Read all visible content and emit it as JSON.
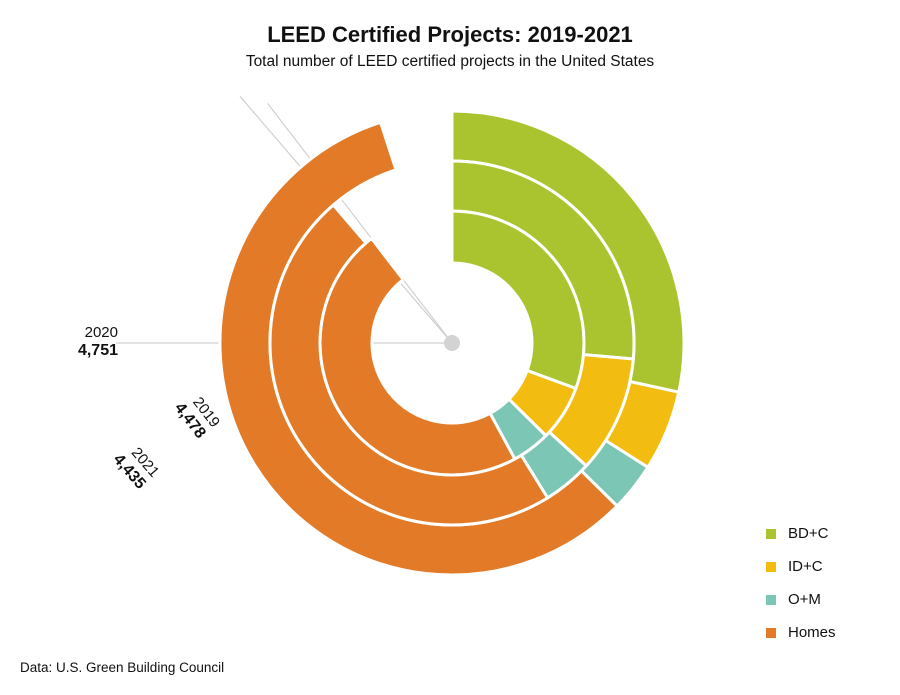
{
  "chart_data": {
    "type": "donut",
    "title": "LEED Certified Projects: 2019-2021",
    "subtitle": "Total number of LEED certified projects in the United States",
    "source": "Data: U.S. Green Building Council",
    "categories": [
      "BD+C",
      "ID+C",
      "O+M",
      "Homes"
    ],
    "colors": {
      "BD+C": "#a9c42e",
      "ID+C": "#f2bc10",
      "O+M": "#7cc6b5",
      "Homes": "#e27a28"
    },
    "rings": [
      {
        "year": "2019",
        "total_label": "4,478",
        "total": 4478,
        "values": {
          "BD+C": 1530,
          "ID+C": 340,
          "O+M": 235,
          "Homes": 2373
        }
      },
      {
        "year": "2020",
        "total_label": "4,751",
        "total": 4751,
        "values": {
          "BD+C": 1420,
          "ID+C": 280,
          "O+M": 170,
          "Homes": 2881
        }
      },
      {
        "year": "2021",
        "total_label": "4,435",
        "total": 4435,
        "values": {
          "BD+C": 1320,
          "ID+C": 520,
          "O+M": 220,
          "Homes": 2375
        }
      }
    ],
    "legend": [
      "BD+C",
      "ID+C",
      "O+M",
      "Homes"
    ],
    "legend_position": "bottom-right"
  }
}
